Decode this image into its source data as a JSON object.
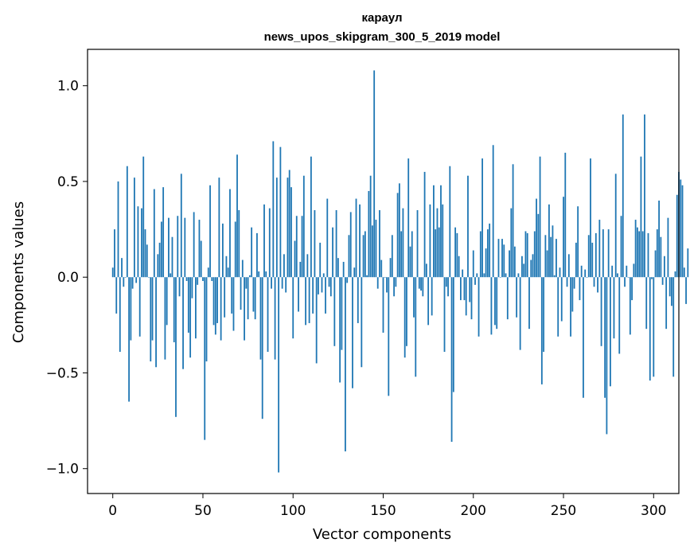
{
  "chart_data": {
    "type": "bar",
    "title": "караул",
    "subtitle": "news_upos_skipgram_300_5_2019 model",
    "xlabel": "Vector components",
    "ylabel": "Components values",
    "xlim": [
      -14,
      314
    ],
    "ylim": [
      -1.13,
      1.19
    ],
    "x_ticks": [
      0,
      50,
      100,
      150,
      200,
      250,
      300
    ],
    "y_ticks": [
      -1.0,
      -0.5,
      0.0,
      0.5,
      1.0
    ],
    "y_tick_labels": [
      "−1.0",
      "−0.5",
      "0.0",
      "0.5",
      "1.0"
    ],
    "grid": false,
    "bar_color": "#1f77b4",
    "values": [
      0.05,
      0.25,
      -0.19,
      0.5,
      -0.39,
      0.1,
      -0.05,
      0.0,
      0.58,
      -0.65,
      -0.33,
      -0.06,
      0.52,
      -0.03,
      0.37,
      -0.31,
      0.36,
      0.63,
      0.25,
      0.17,
      0.0,
      -0.44,
      -0.33,
      0.46,
      -0.47,
      0.12,
      0.18,
      0.29,
      0.47,
      -0.43,
      -0.25,
      0.31,
      0.02,
      0.21,
      -0.34,
      -0.73,
      0.32,
      -0.1,
      0.54,
      -0.48,
      0.31,
      -0.02,
      -0.29,
      -0.42,
      -0.11,
      0.34,
      -0.32,
      -0.04,
      0.3,
      0.19,
      -0.02,
      -0.85,
      -0.44,
      0.05,
      0.48,
      -0.02,
      -0.25,
      -0.3,
      -0.24,
      0.52,
      -0.33,
      0.28,
      -0.21,
      0.11,
      0.05,
      0.46,
      -0.19,
      -0.28,
      0.29,
      0.64,
      0.35,
      -0.17,
      0.09,
      -0.33,
      -0.06,
      -0.22,
      0.01,
      0.26,
      -0.18,
      -0.22,
      0.23,
      0.03,
      -0.43,
      -0.74,
      0.38,
      0.03,
      -0.39,
      0.36,
      -0.06,
      0.71,
      -0.43,
      0.52,
      -1.02,
      0.68,
      -0.06,
      0.12,
      -0.08,
      0.52,
      0.56,
      0.47,
      -0.32,
      0.19,
      0.32,
      -0.18,
      0.08,
      0.32,
      0.53,
      -0.25,
      0.12,
      -0.24,
      0.63,
      -0.19,
      0.35,
      -0.45,
      -0.09,
      0.18,
      -0.08,
      0.02,
      -0.19,
      0.41,
      -0.05,
      -0.1,
      0.26,
      -0.36,
      0.35,
      0.1,
      -0.55,
      -0.38,
      0.08,
      -0.91,
      -0.03,
      0.22,
      0.34,
      -0.58,
      0.05,
      0.41,
      -0.24,
      0.38,
      -0.47,
      0.22,
      0.24,
      0.01,
      0.45,
      0.53,
      0.27,
      1.08,
      0.3,
      -0.06,
      0.35,
      0.09,
      -0.29,
      0.0,
      -0.08,
      -0.62,
      0.1,
      0.22,
      -0.1,
      -0.05,
      0.44,
      0.49,
      0.24,
      0.36,
      -0.42,
      -0.36,
      0.62,
      0.16,
      0.24,
      -0.21,
      -0.52,
      0.35,
      -0.06,
      -0.07,
      -0.1,
      0.55,
      0.07,
      -0.25,
      0.38,
      -0.2,
      0.48,
      0.25,
      0.36,
      0.26,
      0.48,
      0.38,
      -0.39,
      -0.05,
      -0.1,
      0.58,
      -0.86,
      -0.6,
      0.26,
      0.23,
      0.11,
      -0.12,
      0.04,
      -0.12,
      -0.2,
      0.53,
      -0.13,
      -0.22,
      0.14,
      -0.04,
      0.02,
      -0.31,
      0.24,
      0.62,
      0.02,
      0.15,
      0.25,
      0.28,
      -0.3,
      0.69,
      -0.25,
      -0.27,
      0.2,
      0.0,
      0.2,
      0.17,
      0.02,
      -0.22,
      0.14,
      0.36,
      0.59,
      0.16,
      -0.21,
      0.02,
      -0.38,
      0.11,
      0.07,
      0.24,
      0.23,
      -0.27,
      0.09,
      0.12,
      0.24,
      0.41,
      0.33,
      0.63,
      -0.56,
      -0.39,
      0.22,
      0.14,
      0.38,
      0.21,
      0.27,
      0.01,
      0.2,
      -0.31,
      0.05,
      -0.23,
      0.42,
      0.65,
      -0.05,
      0.12,
      -0.31,
      -0.18,
      -0.06,
      0.18,
      0.37,
      -0.12,
      0.06,
      -0.63,
      0.04,
      0.0,
      0.22,
      0.62,
      0.18,
      -0.05,
      0.23,
      -0.08,
      0.3,
      -0.36,
      0.25,
      -0.63,
      -0.82,
      0.25,
      -0.57,
      0.06,
      -0.32,
      0.54,
      0.02,
      -0.4,
      0.32,
      0.85,
      -0.05,
      0.06,
      0.0,
      -0.3,
      -0.12,
      0.07,
      0.3,
      0.26,
      0.24,
      0.63,
      0.24,
      0.85,
      -0.27,
      0.23,
      -0.54,
      -0.01,
      -0.52,
      0.14,
      0.25,
      0.4,
      0.21,
      -0.04,
      0.11,
      -0.27,
      0.31,
      -0.1,
      -0.15,
      -0.52,
      0.03,
      0.43,
      0.55,
      0.51,
      0.48,
      0.05,
      -0.14,
      0.15
    ]
  }
}
